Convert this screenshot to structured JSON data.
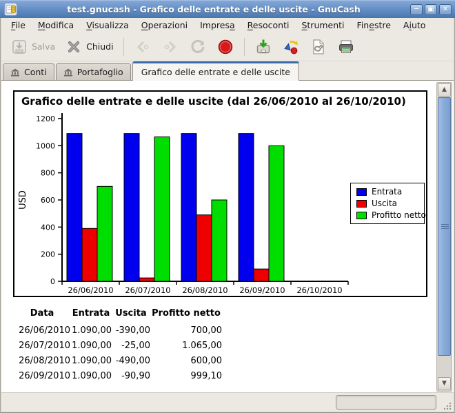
{
  "window": {
    "title": "test.gnucash - Grafico delle entrate e delle uscite - GnuCash",
    "controls": [
      {
        "id": "minimize",
        "glyph": "─"
      },
      {
        "id": "maximize",
        "glyph": "▫"
      },
      {
        "id": "close",
        "glyph": "✕"
      }
    ]
  },
  "menu_bar": {
    "items": [
      {
        "label": "File",
        "mnemonic_index": 0
      },
      {
        "label": "Modifica",
        "mnemonic_index": 0
      },
      {
        "label": "Visualizza",
        "mnemonic_index": 0
      },
      {
        "label": "Operazioni",
        "mnemonic_index": 0
      },
      {
        "label": "Impresa",
        "mnemonic_index": 6
      },
      {
        "label": "Resoconti",
        "mnemonic_index": 0
      },
      {
        "label": "Strumenti",
        "mnemonic_index": 0
      },
      {
        "label": "Finestre",
        "mnemonic_index": 3
      },
      {
        "label": "Aiuto",
        "mnemonic_index": 1
      }
    ]
  },
  "toolbar": {
    "items": [
      {
        "id": "save",
        "label": "Salva",
        "icon": "save-icon",
        "disabled": true
      },
      {
        "id": "close-page",
        "label": "Chiudi",
        "icon": "close-icon",
        "disabled": false
      },
      {
        "type": "separator"
      },
      {
        "id": "back",
        "icon": "back-icon",
        "disabled": true
      },
      {
        "id": "forward",
        "icon": "forward-icon",
        "disabled": true
      },
      {
        "id": "reload",
        "icon": "reload-icon",
        "disabled": false
      },
      {
        "id": "stop",
        "icon": "stop-icon",
        "disabled": false
      },
      {
        "type": "separator"
      },
      {
        "id": "export",
        "icon": "export-icon",
        "disabled": false
      },
      {
        "id": "options",
        "icon": "options-icon",
        "disabled": false
      },
      {
        "id": "report-options",
        "icon": "page-wrench-icon",
        "disabled": false
      },
      {
        "id": "print",
        "icon": "print-icon",
        "disabled": false
      }
    ]
  },
  "tabs": [
    {
      "label": "Conti",
      "icon": "bank-icon",
      "active": false
    },
    {
      "label": "Portafoglio",
      "icon": "bank-icon",
      "active": false
    },
    {
      "label": "Grafico delle entrate e delle uscite",
      "icon": null,
      "active": true
    }
  ],
  "report": {
    "title": "Grafico delle entrate e delle uscite (dal 26/06/2010 al 26/10/2010)"
  },
  "chart_data": {
    "type": "bar",
    "title": "Grafico delle entrate e delle uscite (dal 26/06/2010 al 26/10/2010)",
    "categories": [
      "26/06/2010",
      "26/07/2010",
      "26/08/2010",
      "26/09/2010",
      "26/10/2010"
    ],
    "series": [
      {
        "name": "Entrata",
        "color": "#0000ee",
        "values": [
          1090,
          1090,
          1090,
          1090,
          0
        ]
      },
      {
        "name": "Uscita",
        "color": "#ee0000",
        "values": [
          390,
          25,
          490,
          90.9,
          0
        ]
      },
      {
        "name": "Profitto netto",
        "color": "#00dd00",
        "values": [
          700,
          1065,
          600,
          999.1,
          0
        ]
      }
    ],
    "xlabel": "",
    "ylabel": "USD",
    "ylim": [
      0,
      1200
    ],
    "ytick_step": 200,
    "grid": false,
    "legend_position": "right"
  },
  "report_table": {
    "headers": [
      "Data",
      "Entrata",
      "Uscita",
      "Profitto netto"
    ],
    "rows": [
      [
        "26/06/2010",
        "1.090,00",
        "-390,00",
        "700,00"
      ],
      [
        "26/07/2010",
        "1.090,00",
        "-25,00",
        "1.065,00"
      ],
      [
        "26/08/2010",
        "1.090,00",
        "-490,00",
        "600,00"
      ],
      [
        "26/09/2010",
        "1.090,00",
        "-90,90",
        "999,10"
      ]
    ]
  },
  "colors": {
    "entrata": "#0000ee",
    "uscita": "#ee0000",
    "profitto_netto": "#00dd00",
    "titlebar": "#5e87bd",
    "panel_bg": "#ece9e3"
  }
}
